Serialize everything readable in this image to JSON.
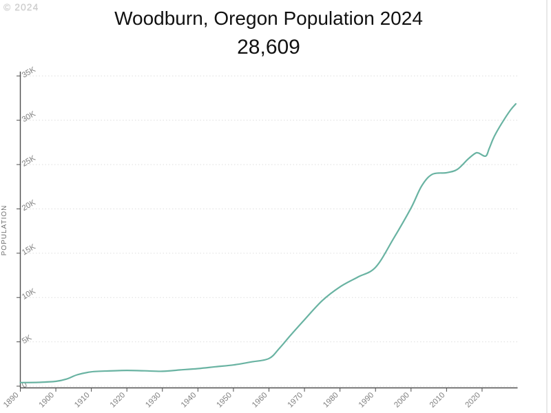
{
  "watermark": "© 2024",
  "chart_data": {
    "type": "line",
    "title": "Woodburn, Oregon Population 2024",
    "subtitle": "28,609",
    "ylabel": "POPULATION",
    "xlabel": "",
    "legend_position": "none",
    "grid": "horizontal-dotted",
    "xlim": [
      1890,
      2030
    ],
    "ylim": [
      0,
      35000
    ],
    "x_ticks": [
      1890,
      1900,
      1910,
      1920,
      1930,
      1940,
      1950,
      1960,
      1970,
      1980,
      1990,
      2000,
      2010,
      2020
    ],
    "y_ticks": [
      {
        "value": 0,
        "label": "0"
      },
      {
        "value": 5000,
        "label": "5K"
      },
      {
        "value": 10000,
        "label": "10K"
      },
      {
        "value": 15000,
        "label": "15K"
      },
      {
        "value": 20000,
        "label": "20K"
      },
      {
        "value": 25000,
        "label": "25K"
      },
      {
        "value": 30000,
        "label": "30K"
      },
      {
        "value": 35000,
        "label": "35K"
      }
    ],
    "series": [
      {
        "name": "Population",
        "color": "#69b3a2",
        "points": [
          [
            1890,
            400
          ],
          [
            1895,
            430
          ],
          [
            1900,
            546
          ],
          [
            1903,
            800
          ],
          [
            1906,
            1280
          ],
          [
            1910,
            1616
          ],
          [
            1915,
            1720
          ],
          [
            1920,
            1777
          ],
          [
            1925,
            1735
          ],
          [
            1930,
            1675
          ],
          [
            1935,
            1830
          ],
          [
            1940,
            1982
          ],
          [
            1945,
            2190
          ],
          [
            1950,
            2395
          ],
          [
            1955,
            2730
          ],
          [
            1960,
            3120
          ],
          [
            1963,
            4300
          ],
          [
            1966,
            5700
          ],
          [
            1970,
            7495
          ],
          [
            1975,
            9650
          ],
          [
            1980,
            11196
          ],
          [
            1985,
            12300
          ],
          [
            1990,
            13404
          ],
          [
            1995,
            16600
          ],
          [
            2000,
            20100
          ],
          [
            2003,
            22600
          ],
          [
            2006,
            23900
          ],
          [
            2010,
            24080
          ],
          [
            2013,
            24450
          ],
          [
            2016,
            25600
          ],
          [
            2018,
            26250
          ],
          [
            2019,
            26300
          ],
          [
            2021,
            25950
          ],
          [
            2022,
            26800
          ],
          [
            2023,
            27800
          ],
          [
            2024,
            28609
          ],
          [
            2026,
            29950
          ],
          [
            2028,
            31150
          ],
          [
            2029.5,
            31850
          ]
        ]
      }
    ],
    "colors": {
      "line": "#69b3a2",
      "axis": "#4d4d4d",
      "tick_label": "#808080",
      "gridline": "#dedede",
      "title_text": "#111111",
      "watermark": "#c9c9c9",
      "frame_border": "#e0e0e0"
    }
  }
}
